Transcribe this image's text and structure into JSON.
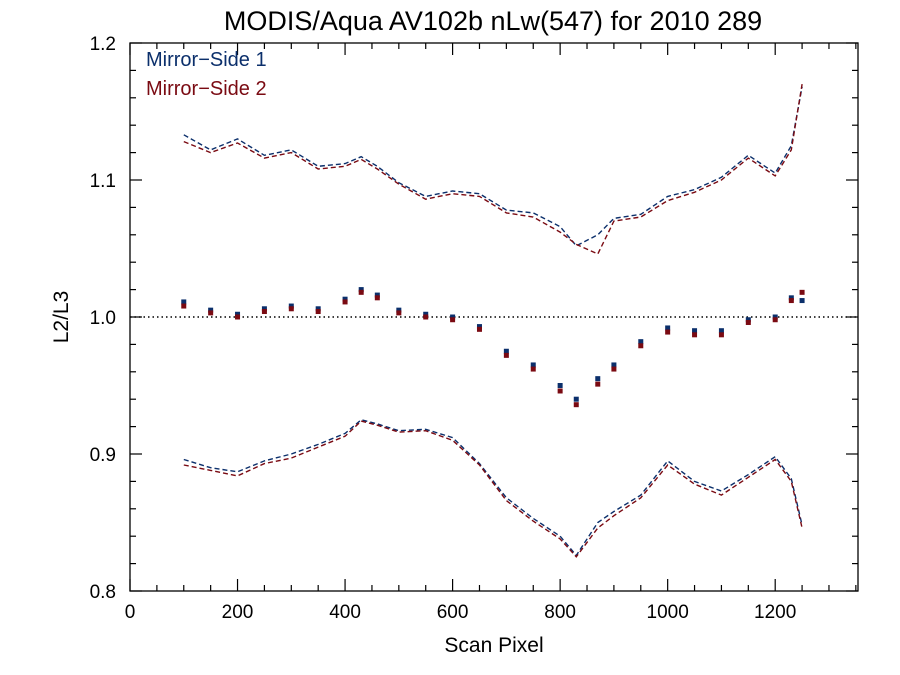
{
  "chart_data": {
    "type": "scatter",
    "title": "MODIS/Aqua AV102b nLw(547) for 2010 289",
    "xlabel": "Scan Pixel",
    "ylabel": "L2/L3",
    "xlim": [
      0,
      1354
    ],
    "ylim": [
      0.8,
      1.2
    ],
    "xticks": [
      0,
      200,
      400,
      600,
      800,
      1000,
      1200
    ],
    "xtick_labels": [
      "0",
      "200",
      "400",
      "600",
      "800",
      "1000",
      "1200"
    ],
    "yticks": [
      0.8,
      0.9,
      1.0,
      1.1,
      1.2
    ],
    "ytick_labels": [
      "0.8",
      "0.9",
      "1.0",
      "1.1",
      "1.2"
    ],
    "reference_line": 1.0,
    "legend_position": "top-left",
    "colors": {
      "ms1": "#0b2f6b",
      "ms2": "#7a0a12",
      "reference": "#000000"
    },
    "series": [
      {
        "name": "Mirror−Side 1",
        "color": "#0b2f6b",
        "x": [
          100,
          150,
          200,
          250,
          300,
          350,
          400,
          430,
          460,
          500,
          550,
          600,
          650,
          700,
          750,
          800,
          830,
          870,
          900,
          950,
          1000,
          1050,
          1100,
          1150,
          1200,
          1230,
          1250
        ],
        "y": [
          1.011,
          1.005,
          1.002,
          1.006,
          1.008,
          1.006,
          1.013,
          1.02,
          1.016,
          1.005,
          1.002,
          1.0,
          0.993,
          0.975,
          0.965,
          0.95,
          0.94,
          0.955,
          0.965,
          0.982,
          0.992,
          0.99,
          0.99,
          0.998,
          1.0,
          1.014,
          1.012
        ],
        "upper": [
          1.133,
          1.122,
          1.13,
          1.118,
          1.122,
          1.11,
          1.112,
          1.117,
          1.11,
          1.098,
          1.088,
          1.092,
          1.09,
          1.078,
          1.076,
          1.066,
          1.052,
          1.06,
          1.072,
          1.075,
          1.088,
          1.093,
          1.102,
          1.118,
          1.105,
          1.125,
          1.168
        ],
        "lower": [
          0.896,
          0.89,
          0.887,
          0.895,
          0.9,
          0.907,
          0.915,
          0.925,
          0.922,
          0.917,
          0.918,
          0.912,
          0.893,
          0.868,
          0.853,
          0.84,
          0.826,
          0.85,
          0.858,
          0.87,
          0.895,
          0.88,
          0.873,
          0.885,
          0.898,
          0.882,
          0.848
        ]
      },
      {
        "name": "Mirror−Side 2",
        "color": "#7a0a12",
        "x": [
          100,
          150,
          200,
          250,
          300,
          350,
          400,
          430,
          460,
          500,
          550,
          600,
          650,
          700,
          750,
          800,
          830,
          870,
          900,
          950,
          1000,
          1050,
          1100,
          1150,
          1200,
          1230,
          1250
        ],
        "y": [
          1.008,
          1.003,
          1.0,
          1.004,
          1.006,
          1.004,
          1.011,
          1.018,
          1.014,
          1.003,
          1.0,
          0.998,
          0.991,
          0.972,
          0.962,
          0.946,
          0.936,
          0.951,
          0.962,
          0.979,
          0.989,
          0.987,
          0.987,
          0.996,
          0.998,
          1.012,
          1.018
        ],
        "upper": [
          1.128,
          1.12,
          1.127,
          1.116,
          1.12,
          1.108,
          1.11,
          1.115,
          1.108,
          1.097,
          1.086,
          1.09,
          1.088,
          1.076,
          1.073,
          1.062,
          1.053,
          1.046,
          1.07,
          1.073,
          1.085,
          1.091,
          1.1,
          1.116,
          1.103,
          1.122,
          1.17
        ],
        "lower": [
          0.892,
          0.888,
          0.884,
          0.893,
          0.897,
          0.905,
          0.913,
          0.924,
          0.921,
          0.916,
          0.917,
          0.91,
          0.892,
          0.866,
          0.851,
          0.838,
          0.825,
          0.846,
          0.855,
          0.868,
          0.892,
          0.878,
          0.87,
          0.883,
          0.896,
          0.88,
          0.846
        ]
      }
    ]
  }
}
